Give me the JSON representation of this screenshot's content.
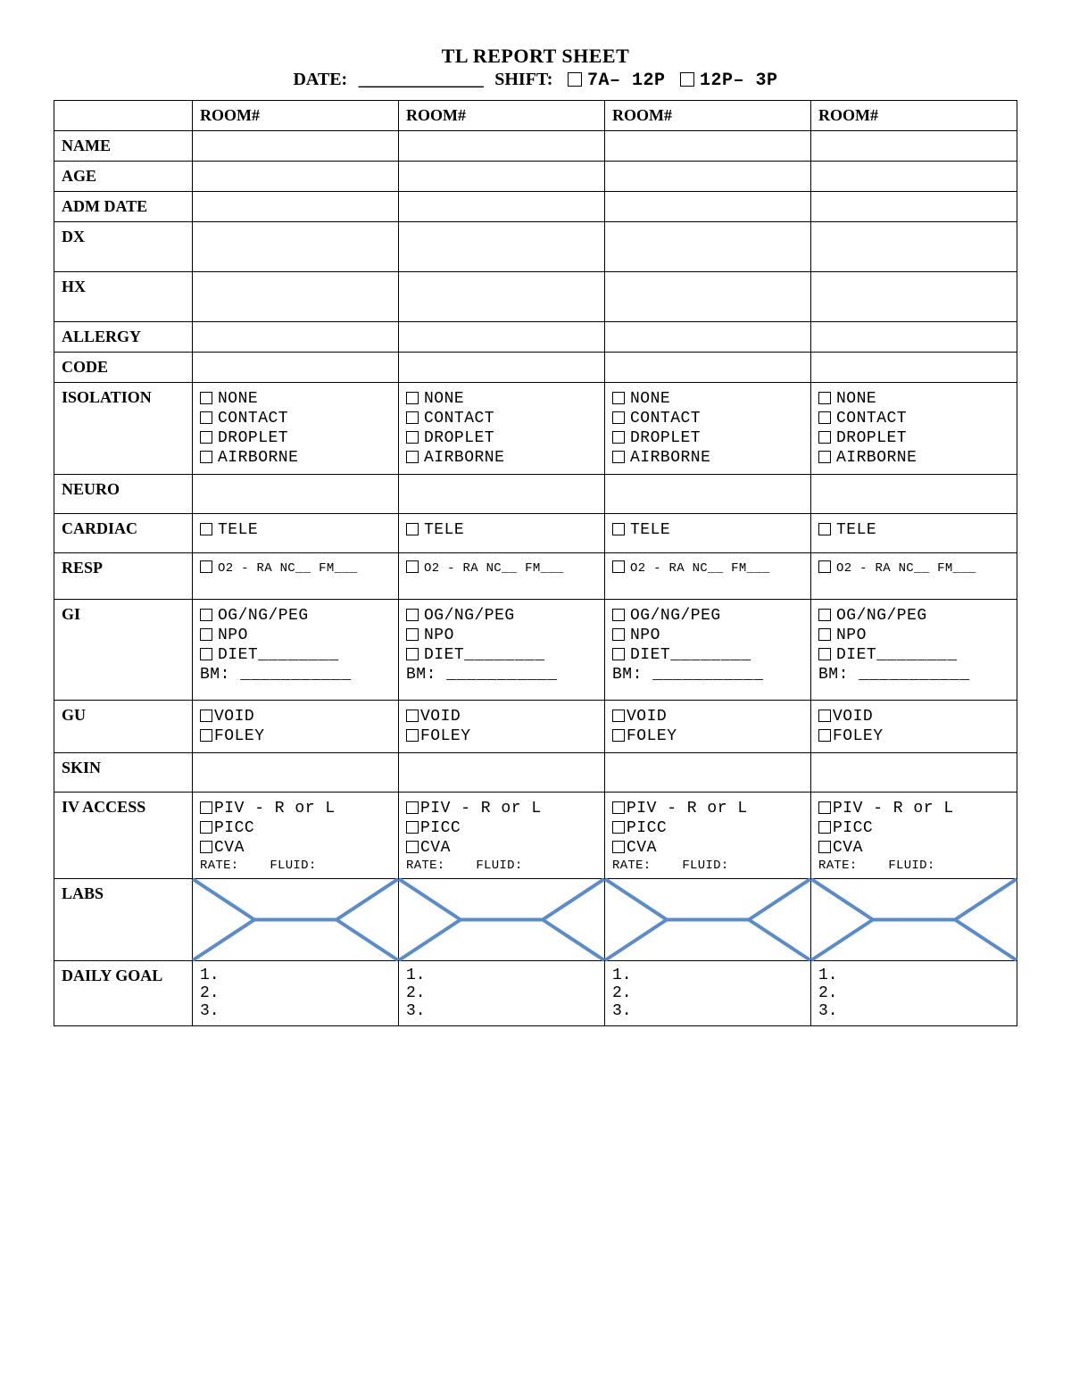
{
  "header": {
    "title": "TL REPORT SHEET",
    "date_label": "DATE:",
    "date_blank": "______________",
    "shift_label": "SHIFT:",
    "shift_opt1": "7A– 12P",
    "shift_opt2": "12P– 3P"
  },
  "columns": {
    "room_label": "ROOM#"
  },
  "rows": {
    "name": "NAME",
    "age": "AGE",
    "adm_date": "ADM DATE",
    "dx": "DX",
    "hx": "HX",
    "allergy": "ALLERGY",
    "code": "CODE",
    "isolation": "ISOLATION",
    "neuro": "NEURO",
    "cardiac": "CARDIAC",
    "resp": "RESP",
    "gi": "GI",
    "gu": "GU",
    "skin": "SKIN",
    "iv": "IV ACCESS",
    "labs": "LABS",
    "goal": "DAILY GOAL"
  },
  "isolation_opts": [
    "NONE",
    "CONTACT",
    "DROPLET",
    "AIRBORNE"
  ],
  "cardiac_opt": "TELE",
  "resp_opt": "O2 - RA NC__ FM___",
  "gi_opts": [
    "OG/NG/PEG",
    "NPO",
    "DIET________"
  ],
  "gi_bm": "BM: ___________",
  "gu_opts": [
    "VOID",
    "FOLEY"
  ],
  "iv_opts": [
    "PIV - R or L",
    "PICC",
    "CVA"
  ],
  "iv_rate": "RATE:",
  "iv_fluid": "FLUID:",
  "goal_nums": [
    "1.",
    "2.",
    "3."
  ],
  "style": {
    "fishbone_color": "#5b8bc9",
    "fishbone_width": 5
  }
}
